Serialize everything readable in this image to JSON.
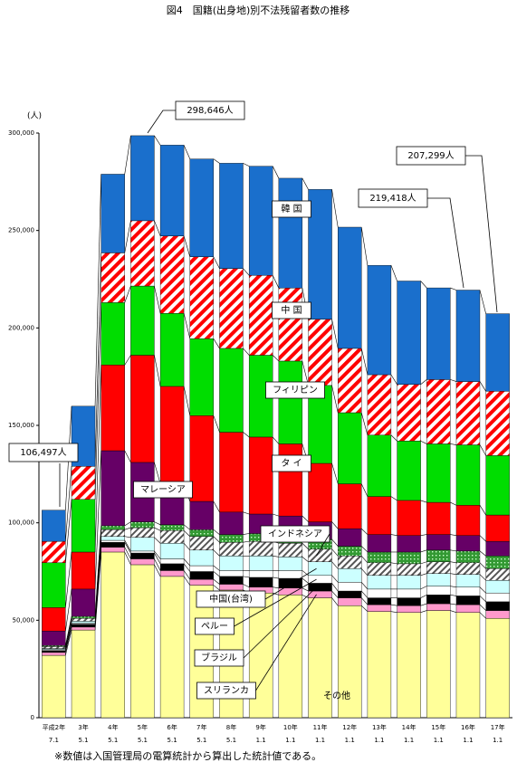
{
  "chart_data": {
    "type": "stacked-bar",
    "title": "図4　国籍(出身地)別不法残留者数の推移",
    "y_label": "(人)",
    "footnote": "※数値は入国管理局の電算統計から算出した統計値である。",
    "categories": [
      [
        "平成2年",
        "7.1"
      ],
      [
        "3年",
        "5.1"
      ],
      [
        "4年",
        "5.1"
      ],
      [
        "5年",
        "5.1"
      ],
      [
        "6年",
        "5.1"
      ],
      [
        "7年",
        "5.1"
      ],
      [
        "8年",
        "5.1"
      ],
      [
        "9年",
        "1.1"
      ],
      [
        "10年",
        "1.1"
      ],
      [
        "11年",
        "1.1"
      ],
      [
        "12年",
        "1.1"
      ],
      [
        "13年",
        "1.1"
      ],
      [
        "14年",
        "1.1"
      ],
      [
        "15年",
        "1.1"
      ],
      [
        "16年",
        "1.1"
      ],
      [
        "17年",
        "1.1"
      ]
    ],
    "ylim": [
      0,
      300000
    ],
    "yticks": [
      0,
      {
        "value": 50000,
        "label": "50,000"
      },
      {
        "value": 100000,
        "label": "100,000"
      },
      {
        "value": 150000,
        "label": "150,000"
      },
      {
        "value": 200000,
        "label": "200,000"
      },
      {
        "value": 250000,
        "label": "250,000"
      },
      {
        "value": 300000,
        "label": "300,000"
      }
    ],
    "series": [
      {
        "name": "その他",
        "color": "#ffff99",
        "values": [
          32000,
          45000,
          85000,
          78500,
          72500,
          68000,
          65500,
          64000,
          63000,
          61500,
          57500,
          54500,
          54000,
          55000,
          54000,
          51000
        ]
      },
      {
        "name": "スリランカ",
        "color": "#ff99cc",
        "values": [
          1500,
          1500,
          2500,
          3000,
          3000,
          3000,
          3000,
          3000,
          3500,
          3500,
          4000,
          3500,
          3500,
          3500,
          4000,
          4000
        ]
      },
      {
        "name": "ブラジル",
        "color": "#000000",
        "values": [
          1000,
          1500,
          2500,
          3000,
          3500,
          4000,
          4000,
          5000,
          5000,
          4000,
          3500,
          3500,
          4000,
          4500,
          4500,
          4500
        ]
      },
      {
        "name": "ペルー",
        "color": "#ffffff",
        "values": [
          500,
          500,
          1000,
          1000,
          2500,
          3000,
          3000,
          3500,
          4000,
          4000,
          4500,
          4500,
          4500,
          4500,
          4500,
          4500
        ]
      },
      {
        "name": "中国(台湾)",
        "color": "#ccffff",
        "values": [
          500,
          1000,
          2000,
          7000,
          8000,
          8000,
          7500,
          7500,
          7000,
          7000,
          7000,
          7000,
          7000,
          6500,
          6500,
          6500
        ]
      },
      {
        "name": "インドネシア",
        "color": "#808080",
        "pattern": "hatch",
        "values": [
          1000,
          1500,
          3500,
          5000,
          6500,
          7000,
          7000,
          7500,
          7000,
          6500,
          6500,
          6500,
          6000,
          6000,
          6000,
          6000
        ]
      },
      {
        "color": "#339933",
        "pattern": "dots",
        "values": [
          500,
          1000,
          2000,
          3000,
          3000,
          3500,
          4000,
          4000,
          4500,
          5000,
          5000,
          5500,
          6000,
          6000,
          6000,
          6500
        ]
      },
      {
        "name": "マレーシア",
        "color": "#660066",
        "values": [
          7500,
          14000,
          38500,
          30500,
          21000,
          14500,
          11500,
          10000,
          9500,
          9000,
          9000,
          9000,
          8500,
          8000,
          8000,
          7500
        ]
      },
      {
        "name": "タ イ",
        "color": "#ff0000",
        "values": [
          12000,
          19000,
          44000,
          55000,
          50000,
          44000,
          41000,
          39500,
          37000,
          30000,
          23000,
          19500,
          18000,
          16500,
          15500,
          13500
        ]
      },
      {
        "name": "フィリピン",
        "color": "#00dd00",
        "values": [
          23000,
          27000,
          32000,
          35500,
          37500,
          39500,
          43000,
          42000,
          42500,
          40000,
          36500,
          31500,
          30500,
          30000,
          31000,
          30500
        ]
      },
      {
        "name": "中 国",
        "color": "#ff0000",
        "pattern": "hatch",
        "values": [
          11000,
          17000,
          25500,
          33500,
          39700,
          42000,
          41000,
          41000,
          37500,
          34000,
          33000,
          31000,
          29000,
          33000,
          32500,
          33000
        ]
      },
      {
        "name": "韓 国",
        "color": "#1a6fcc",
        "values": [
          15997,
          30828,
          40392,
          43646,
          46600,
          50204,
          54000,
          55986,
          56310,
          66548,
          62197,
          56121,
          53067,
          47052,
          46918,
          39799
        ]
      }
    ],
    "annotations": [
      "106,497人",
      "298,646人",
      "219,418人",
      "207,299人"
    ]
  }
}
